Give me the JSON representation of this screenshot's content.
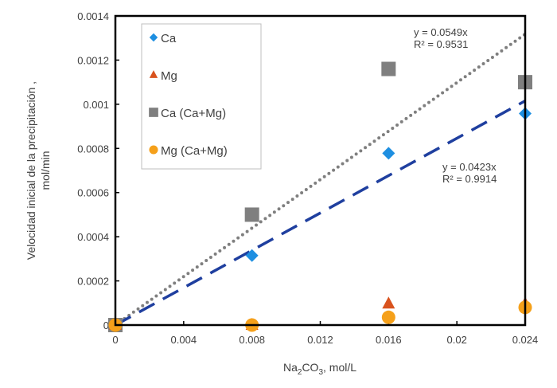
{
  "chart_data": {
    "type": "scatter",
    "title": "",
    "xlabel_main": "Na",
    "xlabel_sub": "2",
    "xlabel_rest": "CO",
    "xlabel_sub2": "3",
    "xlabel_unit": ",  mol/L",
    "ylabel_line1": "Velocidad inicial de la precipitación ,",
    "ylabel_line2": "mol/min",
    "xlim": [
      0,
      0.024
    ],
    "ylim": [
      0,
      0.0014
    ],
    "xticks": [
      "0",
      "0.004",
      "0.008",
      "0.012",
      "0.016",
      "0.02",
      "0.024"
    ],
    "xtick_values": [
      0,
      0.004,
      0.008,
      0.012,
      0.016,
      0.02,
      0.024
    ],
    "yticks": [
      "0",
      "0.0002",
      "0.0004",
      "0.0006",
      "0.0008",
      "0.001",
      "0.0012",
      "0.0014"
    ],
    "ytick_values": [
      0,
      0.0002,
      0.0004,
      0.0006,
      0.0008,
      0.001,
      0.0012,
      0.0014
    ],
    "grid": false,
    "legend_position": "top-left",
    "series": [
      {
        "name": "Ca",
        "marker": "diamond",
        "color": "#1E8FE1",
        "x": [
          0,
          0.008,
          0.016,
          0.024
        ],
        "y": [
          0,
          0.000315,
          0.000778,
          0.000958
        ]
      },
      {
        "name": "Mg",
        "marker": "triangle",
        "color": "#D9531E",
        "x": [
          0,
          0.008,
          0.016,
          0.024
        ],
        "y": [
          0,
          0,
          9.65e-05,
          9.54e-05
        ]
      },
      {
        "name": "Ca (Ca+Mg)",
        "marker": "square",
        "color": "#7F7F7F",
        "x": [
          0,
          0.008,
          0.016,
          0.024
        ],
        "y": [
          0,
          0.0005,
          0.00116,
          0.0011
        ]
      },
      {
        "name": "Mg (Ca+Mg)",
        "marker": "circle",
        "color": "#F5A01A",
        "x": [
          0,
          0.008,
          0.016,
          0.024
        ],
        "y": [
          0,
          0,
          3.5e-05,
          8e-05
        ]
      }
    ],
    "trendlines": [
      {
        "series": "Ca (Ca+Mg)",
        "slope": 0.0549,
        "equation": "y = 0.0549x",
        "r2": "R² = 0.9531",
        "style": "dotted",
        "color": "#7F7F7F"
      },
      {
        "series": "Ca",
        "slope": 0.0423,
        "equation": "y = 0.0423x",
        "r2": "R² = 0.9914",
        "style": "dashed",
        "color": "#1F3F9F"
      }
    ]
  }
}
